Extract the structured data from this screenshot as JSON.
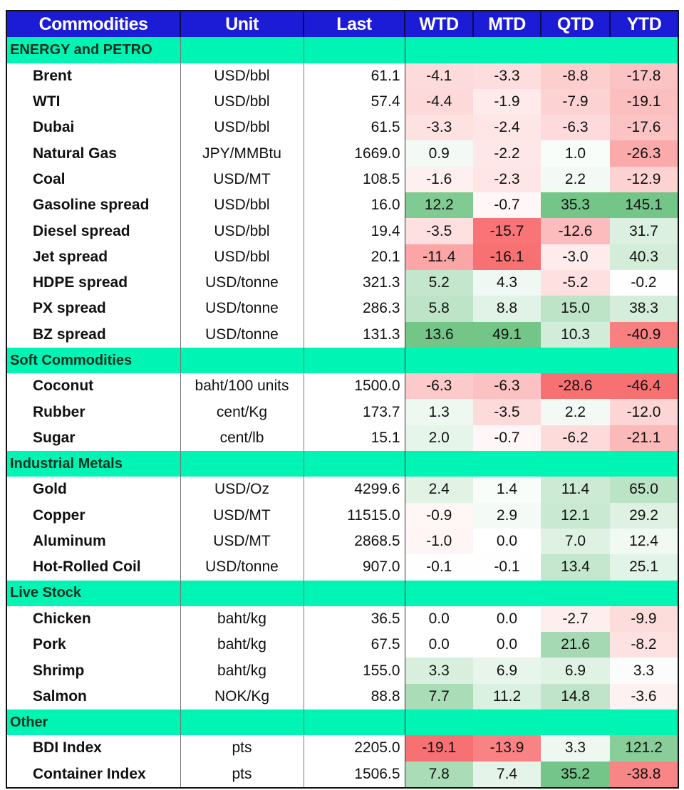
{
  "headers": [
    "Commodities",
    "Unit",
    "Last",
    "WTD",
    "MTD",
    "QTD",
    "YTD"
  ],
  "colors": {
    "header_bg": "#1c1cd6",
    "section_bg": "#00f5b4",
    "negative": "#f8696b",
    "positive": "#63be7b"
  },
  "sections": [
    {
      "title": "ENERGY and PETRO",
      "rows": [
        {
          "name": "Brent",
          "unit": "USD/bbl",
          "last": "61.1",
          "wtd": "-4.1",
          "mtd": "-3.3",
          "qtd": "-8.8",
          "ytd": "-17.8"
        },
        {
          "name": "WTI",
          "unit": "USD/bbl",
          "last": "57.4",
          "wtd": "-4.4",
          "mtd": "-1.9",
          "qtd": "-7.9",
          "ytd": "-19.1"
        },
        {
          "name": "Dubai",
          "unit": "USD/bbl",
          "last": "61.5",
          "wtd": "-3.3",
          "mtd": "-2.4",
          "qtd": "-6.3",
          "ytd": "-17.6"
        },
        {
          "name": "Natural Gas",
          "unit": "JPY/MMBtu",
          "last": "1669.0",
          "wtd": "0.9",
          "mtd": "-2.2",
          "qtd": "1.0",
          "ytd": "-26.3"
        },
        {
          "name": "Coal",
          "unit": "USD/MT",
          "last": "108.5",
          "wtd": "-1.6",
          "mtd": "-2.3",
          "qtd": "2.2",
          "ytd": "-12.9"
        },
        {
          "name": "Gasoline spread",
          "unit": "USD/bbl",
          "last": "16.0",
          "wtd": "12.2",
          "mtd": "-0.7",
          "qtd": "35.3",
          "ytd": "145.1"
        },
        {
          "name": "Diesel spread",
          "unit": "USD/bbl",
          "last": "19.4",
          "wtd": "-3.5",
          "mtd": "-15.7",
          "qtd": "-12.6",
          "ytd": "31.7"
        },
        {
          "name": "Jet spread",
          "unit": "USD/bbl",
          "last": "20.1",
          "wtd": "-11.4",
          "mtd": "-16.1",
          "qtd": "-3.0",
          "ytd": "40.3"
        },
        {
          "name": "HDPE spread",
          "unit": "USD/tonne",
          "last": "321.3",
          "wtd": "5.2",
          "mtd": "4.3",
          "qtd": "-5.2",
          "ytd": "-0.2"
        },
        {
          "name": "PX spread",
          "unit": "USD/tonne",
          "last": "286.3",
          "wtd": "5.8",
          "mtd": "8.8",
          "qtd": "15.0",
          "ytd": "38.3"
        },
        {
          "name": "BZ spread",
          "unit": "USD/tonne",
          "last": "131.3",
          "wtd": "13.6",
          "mtd": "49.1",
          "qtd": "10.3",
          "ytd": "-40.9"
        }
      ]
    },
    {
      "title": "Soft Commodities",
      "rows": [
        {
          "name": "Coconut",
          "unit": "baht/100 units",
          "last": "1500.0",
          "wtd": "-6.3",
          "mtd": "-6.3",
          "qtd": "-28.6",
          "ytd": "-46.4"
        },
        {
          "name": "Rubber",
          "unit": "cent/Kg",
          "last": "173.7",
          "wtd": "1.3",
          "mtd": "-3.5",
          "qtd": "2.2",
          "ytd": "-12.0"
        },
        {
          "name": "Sugar",
          "unit": "cent/lb",
          "last": "15.1",
          "wtd": "2.0",
          "mtd": "-0.7",
          "qtd": "-6.2",
          "ytd": "-21.1"
        }
      ]
    },
    {
      "title": "Industrial Metals",
      "rows": [
        {
          "name": "Gold",
          "unit": "USD/Oz",
          "last": "4299.6",
          "wtd": "2.4",
          "mtd": "1.4",
          "qtd": "11.4",
          "ytd": "65.0"
        },
        {
          "name": "Copper",
          "unit": "USD/MT",
          "last": "11515.0",
          "wtd": "-0.9",
          "mtd": "2.9",
          "qtd": "12.1",
          "ytd": "29.2"
        },
        {
          "name": "Aluminum",
          "unit": "USD/MT",
          "last": "2868.5",
          "wtd": "-1.0",
          "mtd": "0.0",
          "qtd": "7.0",
          "ytd": "12.4"
        },
        {
          "name": "Hot-Rolled Coil",
          "unit": "USD/tonne",
          "last": "907.0",
          "wtd": "-0.1",
          "mtd": "-0.1",
          "qtd": "13.4",
          "ytd": "25.1"
        }
      ]
    },
    {
      "title": "Live Stock",
      "rows": [
        {
          "name": "Chicken",
          "unit": "baht/kg",
          "last": "36.5",
          "wtd": "0.0",
          "mtd": "0.0",
          "qtd": "-2.7",
          "ytd": "-9.9"
        },
        {
          "name": "Pork",
          "unit": "baht/kg",
          "last": "67.5",
          "wtd": "0.0",
          "mtd": "0.0",
          "qtd": "21.6",
          "ytd": "-8.2"
        },
        {
          "name": "Shrimp",
          "unit": "baht/kg",
          "last": "155.0",
          "wtd": "3.3",
          "mtd": "6.9",
          "qtd": "6.9",
          "ytd": "3.3"
        },
        {
          "name": "Salmon",
          "unit": "NOK/Kg",
          "last": "88.8",
          "wtd": "7.7",
          "mtd": "11.2",
          "qtd": "14.8",
          "ytd": "-3.6"
        }
      ]
    },
    {
      "title": "Other",
      "rows": [
        {
          "name": "BDI Index",
          "unit": "pts",
          "last": "2205.0",
          "wtd": "-19.1",
          "mtd": "-13.9",
          "qtd": "3.3",
          "ytd": "121.2"
        },
        {
          "name": "Container Index",
          "unit": "pts",
          "last": "1506.5",
          "wtd": "7.8",
          "mtd": "7.4",
          "qtd": "35.2",
          "ytd": "-38.8"
        }
      ]
    }
  ]
}
